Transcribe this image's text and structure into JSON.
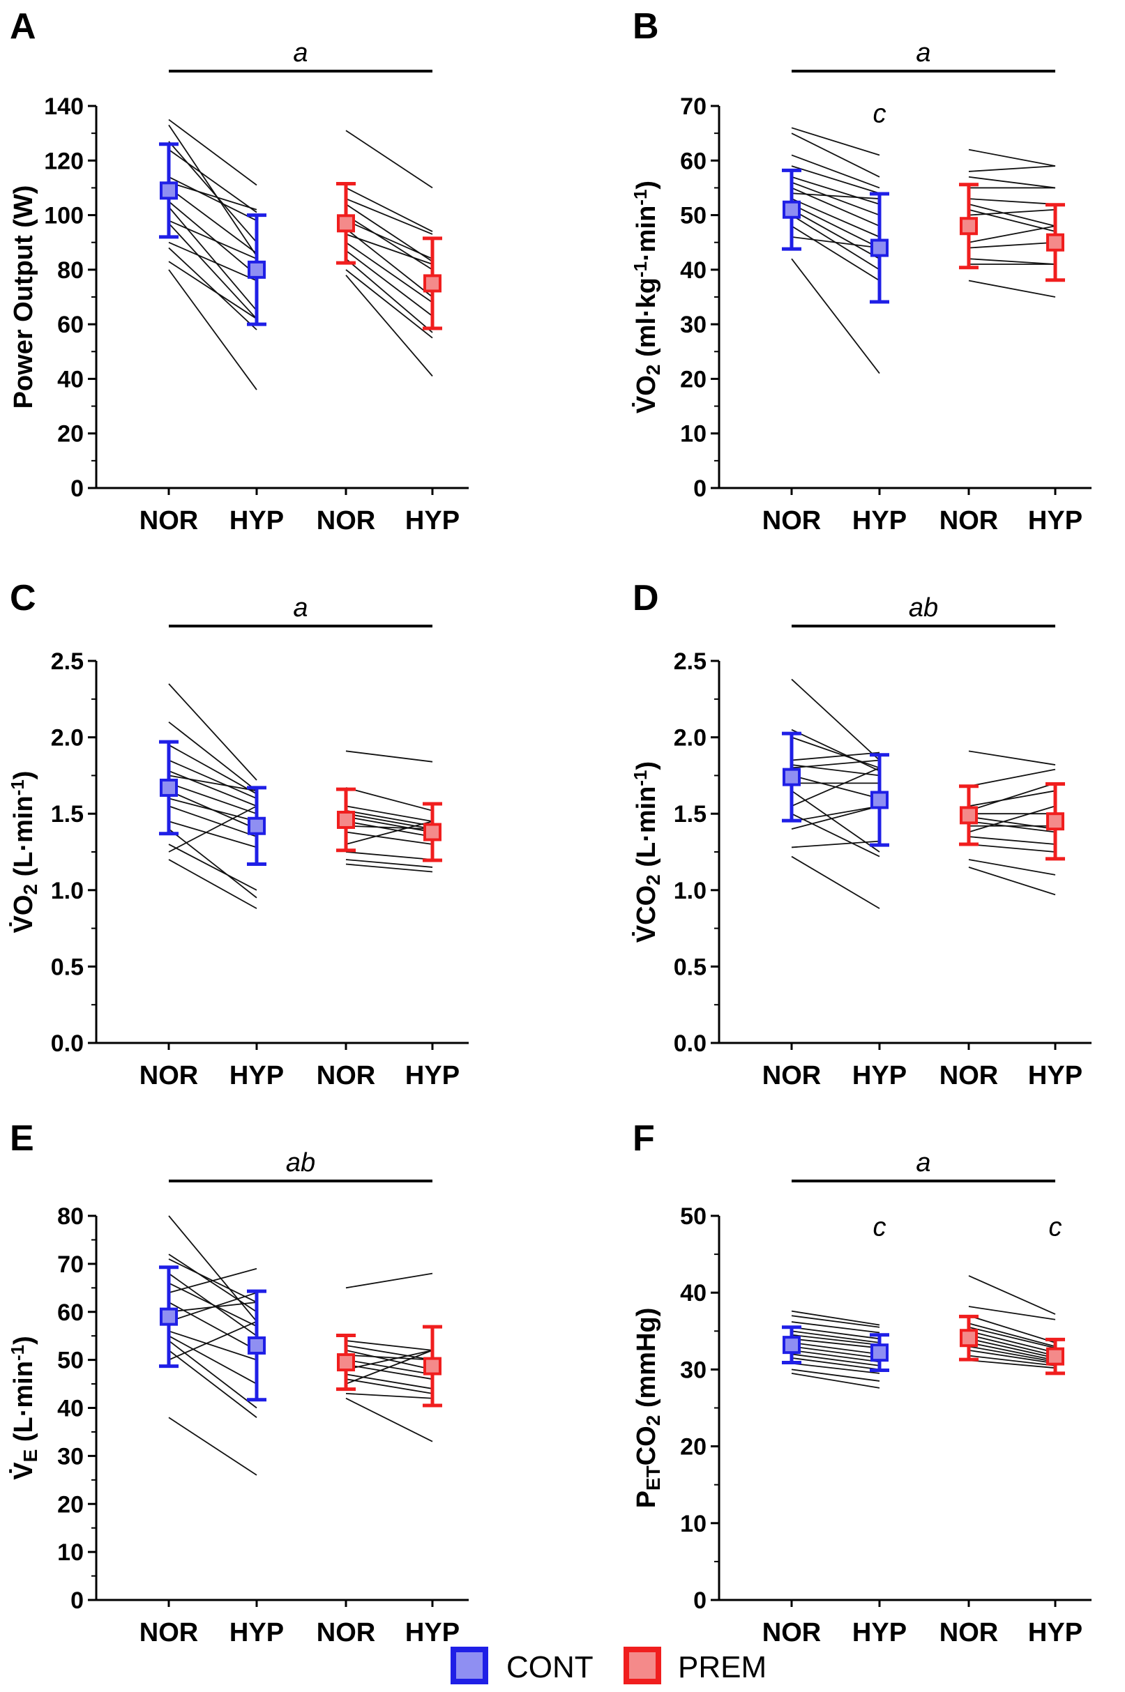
{
  "colors": {
    "cont": "#1f1fe6",
    "cont_fill": "#8f8ff2",
    "prem": "#f01e1e",
    "prem_fill": "#f48a8a",
    "axis": "#000000"
  },
  "legend": {
    "items": [
      {
        "key": "cont",
        "label": "CONT"
      },
      {
        "key": "prem",
        "label": "PREM"
      }
    ]
  },
  "chart_data": [
    {
      "id": "A",
      "letter": "A",
      "type": "scatter",
      "ylabel_parts": [
        {
          "t": "Power Output (W)"
        }
      ],
      "ylim": [
        0,
        140
      ],
      "ticks": [
        0,
        20,
        40,
        60,
        80,
        100,
        120,
        140
      ],
      "categories": [
        "NOR",
        "HYP",
        "NOR",
        "HYP"
      ],
      "significance": {
        "label": "a",
        "bar_from": 0,
        "bar_to": 3
      },
      "hyp_letters": [],
      "series": [
        {
          "name": "CONT",
          "key": "cont",
          "mean": [
            109,
            80
          ],
          "sd": [
            17,
            20
          ],
          "individual": [
            [
              135,
              111
            ],
            [
              133,
              85
            ],
            [
              127,
              90
            ],
            [
              124,
              101
            ],
            [
              114,
              98
            ],
            [
              112,
              102
            ],
            [
              110,
              86
            ],
            [
              105,
              78
            ],
            [
              103,
              65
            ],
            [
              98,
              84
            ],
            [
              97,
              62
            ],
            [
              90,
              76
            ],
            [
              88,
              58
            ],
            [
              83,
              62
            ],
            [
              80,
              36
            ]
          ]
        },
        {
          "name": "PREM",
          "key": "prem",
          "mean": [
            97,
            75
          ],
          "sd": [
            14.5,
            16.5
          ],
          "individual": [
            [
              131,
              110
            ],
            [
              110,
              94
            ],
            [
              106,
              93
            ],
            [
              104,
              83
            ],
            [
              100,
              80
            ],
            [
              98,
              84
            ],
            [
              95,
              70
            ],
            [
              93,
              82
            ],
            [
              90,
              68
            ],
            [
              87,
              63
            ],
            [
              84,
              57
            ],
            [
              80,
              55
            ],
            [
              78,
              41
            ]
          ]
        }
      ]
    },
    {
      "id": "B",
      "letter": "B",
      "type": "scatter",
      "ylabel_parts": [
        {
          "t": "V̇O"
        },
        {
          "t": "2",
          "sub": true
        },
        {
          "t": " (ml·kg"
        },
        {
          "t": "-1",
          "sup": true
        },
        {
          "t": "·min"
        },
        {
          "t": "-1",
          "sup": true
        },
        {
          "t": ")"
        }
      ],
      "ylim": [
        0,
        70
      ],
      "ticks": [
        0,
        10,
        20,
        30,
        40,
        50,
        60,
        70
      ],
      "categories": [
        "NOR",
        "HYP",
        "NOR",
        "HYP"
      ],
      "significance": {
        "label": "a",
        "bar_from": 0,
        "bar_to": 3
      },
      "hyp_letters": [
        {
          "label": "c",
          "group": 1,
          "value": 68.5
        }
      ],
      "series": [
        {
          "name": "CONT",
          "key": "cont",
          "mean": [
            51,
            44
          ],
          "sd": [
            7.2,
            9.9
          ],
          "individual": [
            [
              66,
              61
            ],
            [
              65,
              57
            ],
            [
              61,
              55
            ],
            [
              59,
              54
            ],
            [
              57,
              52
            ],
            [
              56,
              50
            ],
            [
              55,
              48
            ],
            [
              54,
              53
            ],
            [
              53,
              46
            ],
            [
              52,
              44
            ],
            [
              51,
              42
            ],
            [
              50,
              40
            ],
            [
              48,
              38
            ],
            [
              46,
              44
            ],
            [
              42,
              21
            ]
          ]
        },
        {
          "name": "PREM",
          "key": "prem",
          "mean": [
            48,
            45
          ],
          "sd": [
            7.6,
            6.9
          ],
          "individual": [
            [
              62,
              59
            ],
            [
              58,
              59
            ],
            [
              57,
              55
            ],
            [
              55,
              55
            ],
            [
              53,
              52
            ],
            [
              52,
              48
            ],
            [
              51,
              47
            ],
            [
              50,
              51
            ],
            [
              45,
              48
            ],
            [
              44,
              45
            ],
            [
              42,
              41
            ],
            [
              41,
              41
            ],
            [
              38,
              35
            ]
          ]
        }
      ]
    },
    {
      "id": "C",
      "letter": "C",
      "type": "scatter",
      "ylabel_parts": [
        {
          "t": "V̇O"
        },
        {
          "t": "2",
          "sub": true
        },
        {
          "t": " (L·min"
        },
        {
          "t": "-1",
          "sup": true
        },
        {
          "t": ")"
        }
      ],
      "ylim": [
        0,
        2.5
      ],
      "ticks": [
        0.0,
        0.5,
        1.0,
        1.5,
        2.0,
        2.5
      ],
      "tick_decimals": 1,
      "categories": [
        "NOR",
        "HYP",
        "NOR",
        "HYP"
      ],
      "significance": {
        "label": "a",
        "bar_from": 0,
        "bar_to": 3
      },
      "hyp_letters": [],
      "series": [
        {
          "name": "CONT",
          "key": "cont",
          "mean": [
            1.67,
            1.42
          ],
          "sd": [
            0.3,
            0.25
          ],
          "individual": [
            [
              2.35,
              1.72
            ],
            [
              2.1,
              1.65
            ],
            [
              1.95,
              1.63
            ],
            [
              1.85,
              1.6
            ],
            [
              1.78,
              1.55
            ],
            [
              1.75,
              1.65
            ],
            [
              1.7,
              1.5
            ],
            [
              1.65,
              1.4
            ],
            [
              1.6,
              1.45
            ],
            [
              1.55,
              1.35
            ],
            [
              1.45,
              1.28
            ],
            [
              1.4,
              0.95
            ],
            [
              1.3,
              1.0
            ],
            [
              1.25,
              1.55
            ],
            [
              1.2,
              0.88
            ]
          ]
        },
        {
          "name": "PREM",
          "key": "prem",
          "mean": [
            1.46,
            1.38
          ],
          "sd": [
            0.2,
            0.185
          ],
          "individual": [
            [
              1.91,
              1.84
            ],
            [
              1.67,
              1.52
            ],
            [
              1.55,
              1.45
            ],
            [
              1.52,
              1.42
            ],
            [
              1.5,
              1.4
            ],
            [
              1.48,
              1.38
            ],
            [
              1.45,
              1.35
            ],
            [
              1.42,
              1.4
            ],
            [
              1.38,
              1.3
            ],
            [
              1.3,
              1.45
            ],
            [
              1.25,
              1.2
            ],
            [
              1.2,
              1.15
            ],
            [
              1.17,
              1.12
            ]
          ]
        }
      ]
    },
    {
      "id": "D",
      "letter": "D",
      "type": "scatter",
      "ylabel_parts": [
        {
          "t": "V̇CO"
        },
        {
          "t": "2",
          "sub": true
        },
        {
          "t": " (L·min"
        },
        {
          "t": "-1",
          "sup": true
        },
        {
          "t": ")"
        }
      ],
      "ylim": [
        0,
        2.5
      ],
      "ticks": [
        0.0,
        0.5,
        1.0,
        1.5,
        2.0,
        2.5
      ],
      "tick_decimals": 1,
      "categories": [
        "NOR",
        "HYP",
        "NOR",
        "HYP"
      ],
      "significance": {
        "label": "ab",
        "bar_from": 0,
        "bar_to": 3
      },
      "hyp_letters": [],
      "series": [
        {
          "name": "CONT",
          "key": "cont",
          "mean": [
            1.74,
            1.59
          ],
          "sd": [
            0.285,
            0.295
          ],
          "individual": [
            [
              2.38,
              1.85
            ],
            [
              2.05,
              1.78
            ],
            [
              2.0,
              1.8
            ],
            [
              1.85,
              1.9
            ],
            [
              1.82,
              1.75
            ],
            [
              1.8,
              1.85
            ],
            [
              1.75,
              1.6
            ],
            [
              1.7,
              1.7
            ],
            [
              1.65,
              1.25
            ],
            [
              1.55,
              1.8
            ],
            [
              1.5,
              1.22
            ],
            [
              1.45,
              1.55
            ],
            [
              1.4,
              1.55
            ],
            [
              1.28,
              1.32
            ],
            [
              1.22,
              0.88
            ]
          ]
        },
        {
          "name": "PREM",
          "key": "prem",
          "mean": [
            1.49,
            1.45
          ],
          "sd": [
            0.19,
            0.245
          ],
          "individual": [
            [
              1.91,
              1.82
            ],
            [
              1.68,
              1.79
            ],
            [
              1.55,
              1.65
            ],
            [
              1.52,
              1.7
            ],
            [
              1.5,
              1.5
            ],
            [
              1.48,
              1.4
            ],
            [
              1.45,
              1.38
            ],
            [
              1.42,
              1.42
            ],
            [
              1.38,
              1.55
            ],
            [
              1.35,
              1.3
            ],
            [
              1.3,
              1.25
            ],
            [
              1.2,
              1.1
            ],
            [
              1.15,
              0.97
            ]
          ]
        }
      ]
    },
    {
      "id": "E",
      "letter": "E",
      "type": "scatter",
      "ylabel_parts": [
        {
          "t": "V̇"
        },
        {
          "t": "E",
          "sub": true
        },
        {
          "t": " (L·min"
        },
        {
          "t": "-1",
          "sup": true
        },
        {
          "t": ")"
        }
      ],
      "ylim": [
        0,
        80
      ],
      "ticks": [
        0,
        10,
        20,
        30,
        40,
        50,
        60,
        70,
        80
      ],
      "categories": [
        "NOR",
        "HYP",
        "NOR",
        "HYP"
      ],
      "significance": {
        "label": "ab",
        "bar_from": 0,
        "bar_to": 3
      },
      "hyp_letters": [],
      "series": [
        {
          "name": "CONT",
          "key": "cont",
          "mean": [
            59,
            53
          ],
          "sd": [
            10.3,
            11.3
          ],
          "individual": [
            [
              80,
              58
            ],
            [
              72,
              60
            ],
            [
              71,
              62
            ],
            [
              68,
              55
            ],
            [
              66,
              57
            ],
            [
              64,
              69
            ],
            [
              62,
              52
            ],
            [
              60,
              62
            ],
            [
              58,
              64
            ],
            [
              56,
              50
            ],
            [
              55,
              45
            ],
            [
              54,
              40
            ],
            [
              52,
              38
            ],
            [
              50,
              58
            ],
            [
              38,
              26
            ]
          ]
        },
        {
          "name": "PREM",
          "key": "prem",
          "mean": [
            49.5,
            48.7
          ],
          "sd": [
            5.6,
            8.2
          ],
          "individual": [
            [
              65,
              68
            ],
            [
              54,
              52
            ],
            [
              53,
              50
            ],
            [
              52,
              48
            ],
            [
              51,
              50
            ],
            [
              50,
              47
            ],
            [
              49,
              46
            ],
            [
              48,
              52
            ],
            [
              47,
              44
            ],
            [
              46,
              43
            ],
            [
              45,
              52
            ],
            [
              43,
              42
            ],
            [
              42,
              33
            ]
          ]
        }
      ]
    },
    {
      "id": "F",
      "letter": "F",
      "type": "scatter",
      "ylabel_parts": [
        {
          "t": "P"
        },
        {
          "t": "ET",
          "sub": true
        },
        {
          "t": "CO"
        },
        {
          "t": "2",
          "sub": true
        },
        {
          "t": " (mmHg)"
        }
      ],
      "ylim": [
        0,
        50
      ],
      "ticks": [
        0,
        10,
        20,
        30,
        40,
        50
      ],
      "categories": [
        "NOR",
        "HYP",
        "NOR",
        "HYP"
      ],
      "significance": {
        "label": "a",
        "bar_from": 0,
        "bar_to": 3
      },
      "hyp_letters": [
        {
          "label": "c",
          "group": 1,
          "value": 48.5
        },
        {
          "label": "c",
          "group": 3,
          "value": 48.5
        }
      ],
      "series": [
        {
          "name": "CONT",
          "key": "cont",
          "mean": [
            33.2,
            32.2
          ],
          "sd": [
            2.3,
            2.3
          ],
          "individual": [
            [
              37.6,
              35.8
            ],
            [
              37.0,
              35.5
            ],
            [
              36.2,
              34.8
            ],
            [
              35.5,
              34.0
            ],
            [
              35.0,
              33.5
            ],
            [
              34.5,
              33.2
            ],
            [
              34.0,
              32.8
            ],
            [
              33.5,
              32.0
            ],
            [
              33.0,
              31.5
            ],
            [
              32.5,
              31.0
            ],
            [
              32.0,
              30.5
            ],
            [
              31.5,
              30.0
            ],
            [
              30.8,
              29.5
            ],
            [
              30.0,
              28.5
            ],
            [
              29.5,
              27.6
            ]
          ]
        },
        {
          "name": "PREM",
          "key": "prem",
          "mean": [
            34.1,
            31.7
          ],
          "sd": [
            2.8,
            2.2
          ],
          "individual": [
            [
              42.2,
              37.2
            ],
            [
              38.2,
              36.5
            ],
            [
              37.0,
              33.5
            ],
            [
              36.0,
              33.0
            ],
            [
              35.5,
              32.8
            ],
            [
              35.0,
              32.2
            ],
            [
              34.5,
              31.8
            ],
            [
              34.0,
              31.5
            ],
            [
              33.5,
              31.2
            ],
            [
              33.0,
              31.0
            ],
            [
              32.5,
              30.8
            ],
            [
              31.8,
              30.5
            ],
            [
              31.2,
              30.2
            ]
          ]
        }
      ]
    }
  ]
}
